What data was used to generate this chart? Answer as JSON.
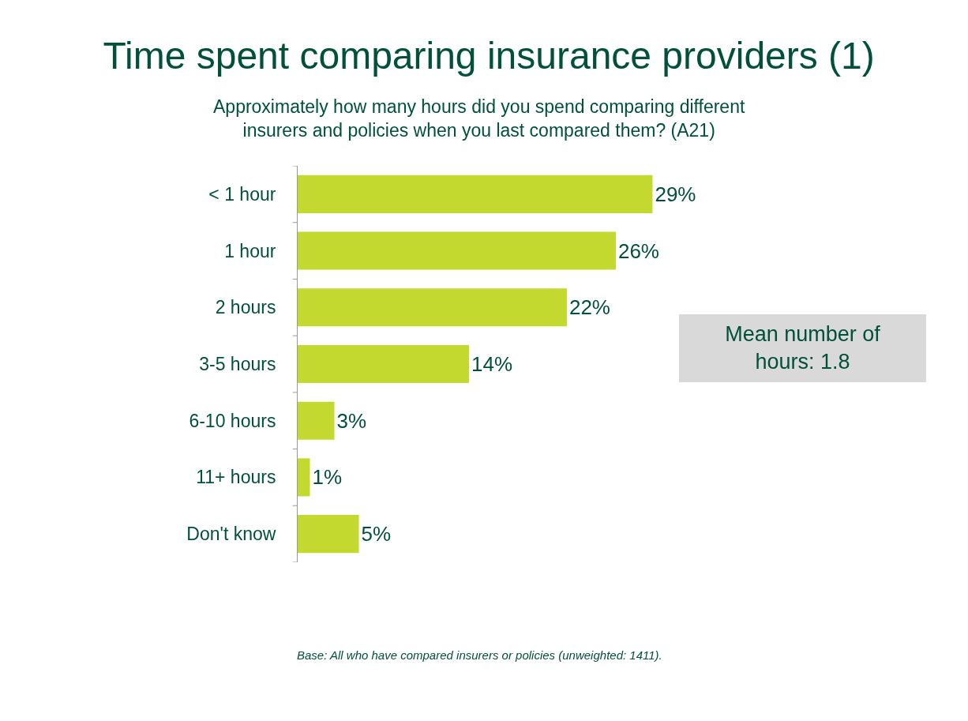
{
  "chart_data": {
    "type": "bar",
    "orientation": "horizontal",
    "title": "Time spent comparing insurance providers (1)",
    "subtitle": "Approximately how many hours did you spend comparing different\ninsurers and policies when you last compared them? (A21)",
    "categories": [
      "< 1 hour",
      "1 hour",
      "2 hours",
      "3-5 hours",
      "6-10 hours",
      "11+ hours",
      "Don't know"
    ],
    "values": [
      29,
      26,
      22,
      14,
      3,
      1,
      5
    ],
    "value_labels": [
      "29%",
      "26%",
      "22%",
      "14%",
      "3%",
      "1%",
      "5%"
    ],
    "color": "#c3d92f",
    "annotations": [
      "Mean number of\nhours: 1.8",
      "Base: All who have compared insurers or policies (unweighted: 1411)."
    ],
    "tick_labels": "y"
  }
}
